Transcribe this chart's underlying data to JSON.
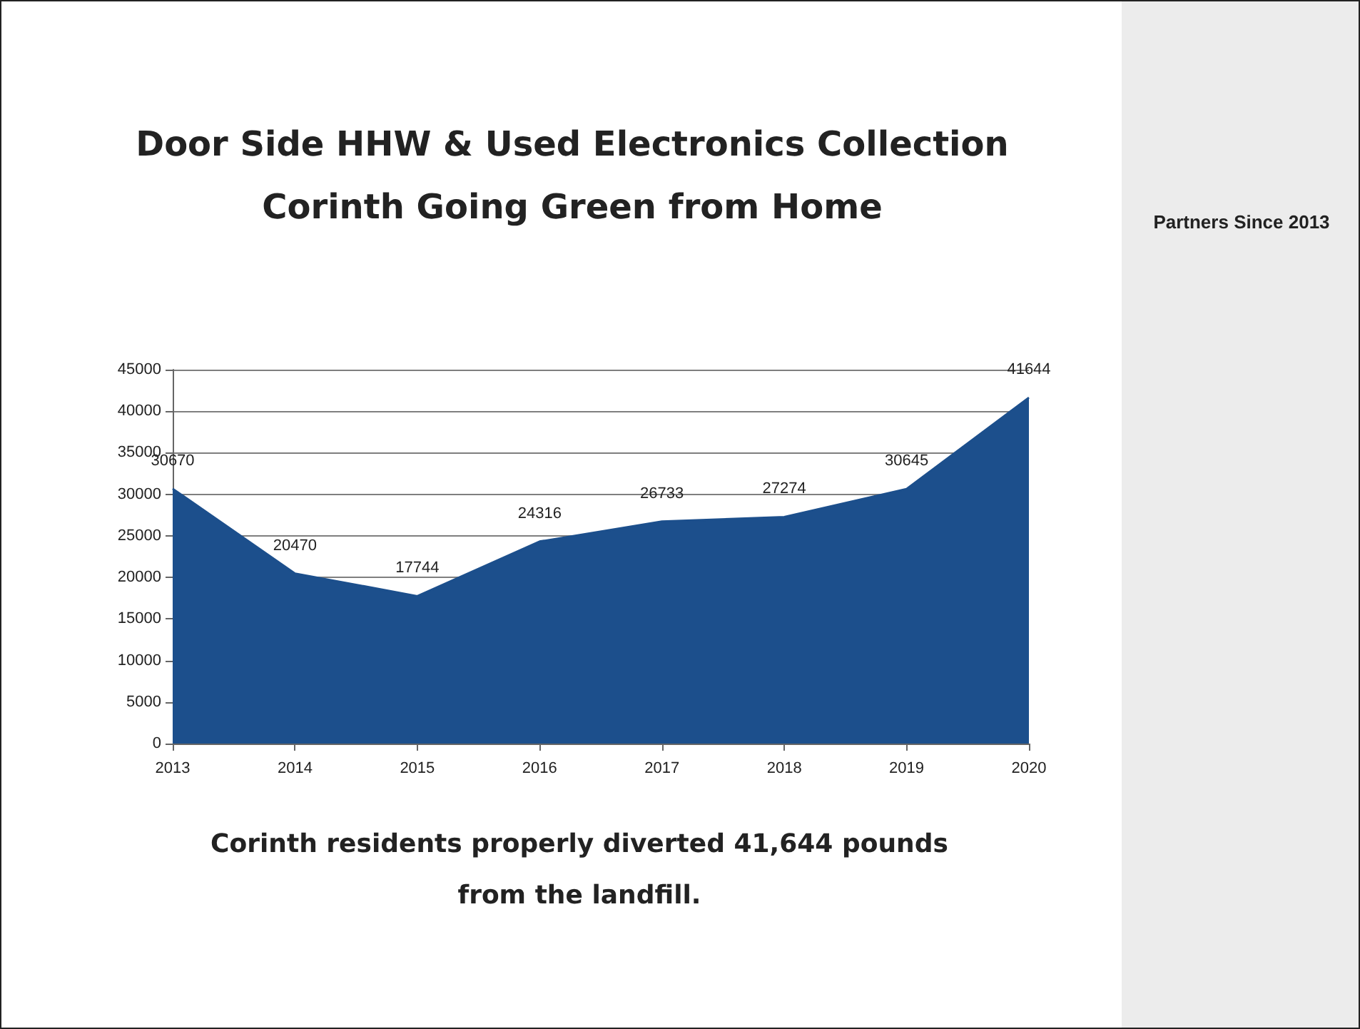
{
  "chart_data": {
    "type": "area",
    "title": "Door Side HHW & Used Electronics Collection",
    "subtitle": "Corinth Going Green from Home",
    "categories": [
      "2013",
      "2014",
      "2015",
      "2016",
      "2017",
      "2018",
      "2019",
      "2020"
    ],
    "values": [
      30670,
      20470,
      17744,
      24316,
      26733,
      27274,
      30645,
      41644
    ],
    "color": "#1c4f8c",
    "ylim": [
      0,
      45000
    ],
    "yticks": [
      0,
      5000,
      10000,
      15000,
      20000,
      25000,
      30000,
      35000,
      40000,
      45000
    ],
    "grid": "y",
    "data_labels": true,
    "marker": "none",
    "annotations": [
      "Partners Since 2013",
      "Corinth residents properly diverted 41,644 pounds from the landfill."
    ]
  }
}
